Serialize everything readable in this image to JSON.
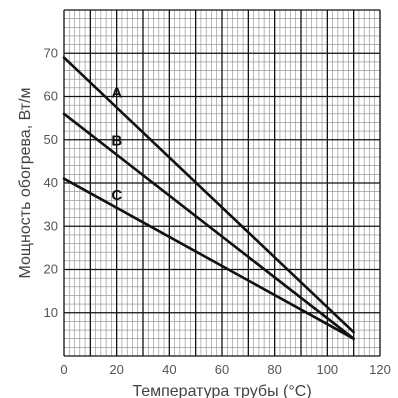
{
  "chart_data": {
    "type": "line",
    "title": "",
    "xlabel": "Температура трубы (°C)",
    "ylabel": "Мощность обогрева, Вт/м",
    "xlim": [
      0,
      120
    ],
    "ylim": [
      0,
      80
    ],
    "x_ticks": [
      "0",
      "20",
      "40",
      "60",
      "80",
      "100",
      "120"
    ],
    "y_ticks": [
      "10",
      "20",
      "30",
      "40",
      "50",
      "60",
      "70"
    ],
    "grid": true,
    "series": [
      {
        "name": "A",
        "x": [
          0,
          110
        ],
        "y": [
          69,
          5.5
        ]
      },
      {
        "name": "B",
        "x": [
          0,
          110
        ],
        "y": [
          56,
          4
        ]
      },
      {
        "name": "C",
        "x": [
          0,
          110
        ],
        "y": [
          41,
          4
        ]
      }
    ],
    "colors": {
      "grid_major": "#111111",
      "grid_minor": "#8a8a8a",
      "line": "#111111",
      "text": "#555555"
    }
  }
}
